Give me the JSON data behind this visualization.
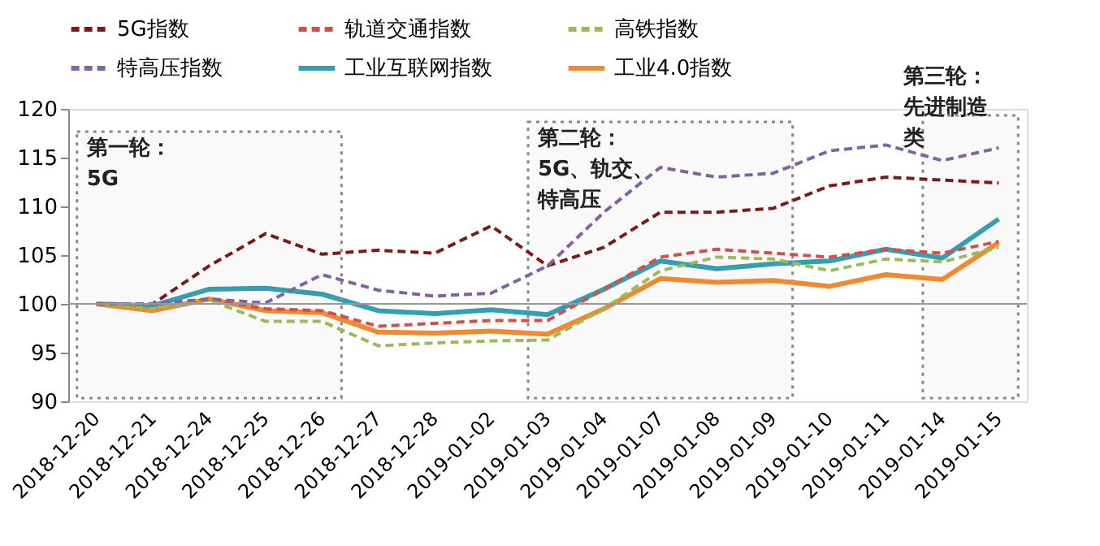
{
  "chart_data": {
    "type": "line",
    "categories": [
      "2018-12-20",
      "2018-12-21",
      "2018-12-24",
      "2018-12-25",
      "2018-12-26",
      "2018-12-27",
      "2018-12-28",
      "2019-01-02",
      "2019-01-03",
      "2019-01-04",
      "2019-01-07",
      "2019-01-08",
      "2019-01-09",
      "2019-01-10",
      "2019-01-11",
      "2019-01-14",
      "2019-01-15"
    ],
    "ylim": [
      90,
      120
    ],
    "yticks": [
      90,
      95,
      100,
      105,
      110,
      115,
      120
    ],
    "grid": false,
    "legend": "top",
    "marker": "none",
    "series": [
      {
        "name": "5G指数",
        "color": "#7b1a1a",
        "line_style": "dashed",
        "values": [
          100,
          100,
          103.9,
          107.2,
          105.1,
          105.5,
          105.2,
          108.0,
          103.9,
          105.8,
          109.4,
          109.4,
          109.8,
          112.1,
          113.0,
          112.7,
          112.4
        ]
      },
      {
        "name": "轨道交通指数",
        "color": "#d0504a",
        "line_style": "dashed",
        "values": [
          100,
          99.5,
          100.5,
          99.5,
          99.3,
          97.7,
          98.0,
          98.3,
          98.3,
          101.5,
          104.8,
          105.6,
          105.2,
          104.8,
          105.6,
          105.2,
          106.4
        ]
      },
      {
        "name": "高铁指数",
        "color": "#9bbb59",
        "line_style": "dashed",
        "values": [
          100,
          99.5,
          100.4,
          98.2,
          98.2,
          95.7,
          96.0,
          96.2,
          96.3,
          99.5,
          103.4,
          104.8,
          104.6,
          103.4,
          104.6,
          104.3,
          105.8
        ]
      },
      {
        "name": "特高压指数",
        "color": "#8064a2",
        "line_style": "dashed",
        "values": [
          100,
          100,
          100.5,
          100.1,
          103.0,
          101.4,
          100.8,
          101.1,
          103.9,
          109.4,
          114.0,
          113.0,
          113.4,
          115.7,
          116.3,
          114.7,
          116.0
        ]
      },
      {
        "name": "工业互联网指数",
        "color": "#31a0b4",
        "line_style": "solid",
        "values": [
          100,
          99.8,
          101.5,
          101.6,
          101.0,
          99.3,
          99.0,
          99.4,
          98.9,
          101.5,
          104.4,
          103.6,
          104.1,
          104.4,
          105.6,
          104.7,
          108.7
        ]
      },
      {
        "name": "工业4.0指数",
        "color": "#f08a30",
        "line_style": "solid",
        "values": [
          100,
          99.3,
          100.5,
          99.3,
          99.1,
          97.1,
          97.0,
          97.2,
          96.9,
          99.5,
          102.6,
          102.2,
          102.4,
          101.8,
          103.0,
          102.5,
          106.3
        ]
      }
    ],
    "ref_lines": [
      {
        "axis": "y",
        "value": 100,
        "color": "#999999",
        "line_style": "solid"
      }
    ],
    "bands": [
      {
        "axis": "x",
        "from": "2018-12-20",
        "to": "2018-12-26",
        "label": "第一轮：5G",
        "color": "#888888"
      },
      {
        "axis": "x",
        "from": "2019-01-03",
        "to": "2019-01-09",
        "label": "第二轮：5G、轨交、特高压",
        "color": "#888888"
      },
      {
        "axis": "x",
        "from": "2019-01-14",
        "to": "2019-01-15",
        "label": "第三轮：先进制造类",
        "color": "#888888"
      }
    ]
  }
}
